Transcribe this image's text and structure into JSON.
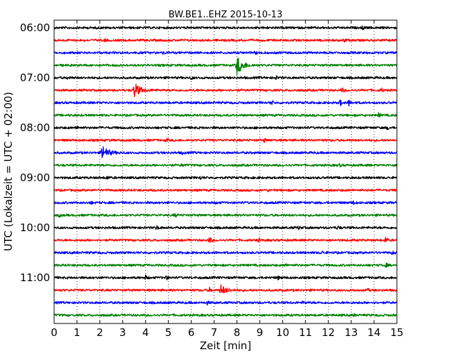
{
  "chart_data": {
    "type": "line",
    "title": "BW.BE1..EHZ 2015-10-13",
    "xlabel": "Zeit  [min]",
    "ylabel": "UTC (Lokalzeit = UTC + 02:00)",
    "xlim": [
      0,
      15
    ],
    "x_ticks": [
      "0",
      "1",
      "2",
      "3",
      "4",
      "5",
      "6",
      "7",
      "8",
      "9",
      "10",
      "11",
      "12",
      "13",
      "14",
      "15"
    ],
    "hour_labels": [
      {
        "trace": 0,
        "label": "06:00"
      },
      {
        "trace": 4,
        "label": "07:00"
      },
      {
        "trace": 8,
        "label": "08:00"
      },
      {
        "trace": 12,
        "label": "09:00"
      },
      {
        "trace": 16,
        "label": "10:00"
      },
      {
        "trace": 20,
        "label": "11:00"
      }
    ],
    "trace_minutes": 15,
    "grid": "vertical dotted",
    "series_colors": [
      "#000000",
      "#ff0000",
      "#0000ff",
      "#008000"
    ],
    "traces": [
      {
        "start": "06:00",
        "color": "#000000",
        "events": [
          {
            "t": 13.5,
            "amp": 0.5
          }
        ]
      },
      {
        "start": "06:15",
        "color": "#ff0000",
        "events": [
          {
            "t": 2.2,
            "amp": 0.5
          },
          {
            "t": 12.7,
            "amp": 0.35
          }
        ]
      },
      {
        "start": "06:30",
        "color": "#0000ff",
        "events": [
          {
            "t": 4.8,
            "amp": 0.3
          },
          {
            "t": 8.8,
            "amp": 0.3
          }
        ]
      },
      {
        "start": "06:45",
        "color": "#008000",
        "events": [
          {
            "t": 8.0,
            "amp": 2.3
          }
        ]
      },
      {
        "start": "07:00",
        "color": "#000000",
        "events": [
          {
            "t": 0.6,
            "amp": 0.45
          },
          {
            "t": 6.0,
            "amp": 0.4
          },
          {
            "t": 9.7,
            "amp": 0.45
          }
        ]
      },
      {
        "start": "07:15",
        "color": "#ff0000",
        "events": [
          {
            "t": 3.5,
            "amp": 1.8
          },
          {
            "t": 12.6,
            "amp": 0.5
          },
          {
            "t": 14.3,
            "amp": 0.6
          }
        ]
      },
      {
        "start": "07:30",
        "color": "#0000ff",
        "events": [
          {
            "t": 9.5,
            "amp": 0.6
          },
          {
            "t": 12.5,
            "amp": 0.9
          },
          {
            "t": 12.9,
            "amp": 1.0
          }
        ]
      },
      {
        "start": "07:45",
        "color": "#008000",
        "events": [
          {
            "t": 14.2,
            "amp": 0.45
          }
        ]
      },
      {
        "start": "08:00",
        "color": "#000000",
        "events": [
          {
            "t": 1.0,
            "amp": 0.5
          },
          {
            "t": 14.6,
            "amp": 0.35
          }
        ]
      },
      {
        "start": "08:15",
        "color": "#ff0000",
        "events": [
          {
            "t": 4.9,
            "amp": 0.4
          },
          {
            "t": 9.2,
            "amp": 0.35
          }
        ]
      },
      {
        "start": "08:30",
        "color": "#0000ff",
        "events": [
          {
            "t": 2.1,
            "amp": 1.8
          },
          {
            "t": 5.6,
            "amp": 0.3
          }
        ]
      },
      {
        "start": "08:45",
        "color": "#008000",
        "events": [
          {
            "t": 5.6,
            "amp": 0.3
          },
          {
            "t": 12.5,
            "amp": 0.3
          }
        ]
      },
      {
        "start": "09:00",
        "color": "#000000",
        "events": [
          {
            "t": 2.3,
            "amp": 0.45
          },
          {
            "t": 6.4,
            "amp": 0.4
          }
        ]
      },
      {
        "start": "09:15",
        "color": "#ff0000",
        "events": [
          {
            "t": 9.4,
            "amp": 0.3
          }
        ]
      },
      {
        "start": "09:30",
        "color": "#0000ff",
        "events": [
          {
            "t": 1.6,
            "amp": 0.3
          },
          {
            "t": 7.1,
            "amp": 0.3
          },
          {
            "t": 13.1,
            "amp": 0.3
          }
        ]
      },
      {
        "start": "09:45",
        "color": "#008000",
        "events": [
          {
            "t": 0.2,
            "amp": 0.45
          },
          {
            "t": 5.3,
            "amp": 0.4
          }
        ]
      },
      {
        "start": "10:00",
        "color": "#000000",
        "events": [
          {
            "t": 4.5,
            "amp": 0.4
          },
          {
            "t": 10.7,
            "amp": 0.4
          },
          {
            "t": 12.4,
            "amp": 0.55
          }
        ]
      },
      {
        "start": "10:15",
        "color": "#ff0000",
        "events": [
          {
            "t": 6.8,
            "amp": 1.0
          },
          {
            "t": 8.9,
            "amp": 0.5
          },
          {
            "t": 14.5,
            "amp": 0.7
          }
        ]
      },
      {
        "start": "10:30",
        "color": "#0000ff",
        "events": [
          {
            "t": 11.7,
            "amp": 0.4
          },
          {
            "t": 14.8,
            "amp": 0.4
          }
        ]
      },
      {
        "start": "10:45",
        "color": "#008000",
        "events": [
          {
            "t": 10.1,
            "amp": 0.35
          },
          {
            "t": 14.5,
            "amp": 0.6
          }
        ]
      },
      {
        "start": "11:00",
        "color": "#000000",
        "events": [
          {
            "t": 4.0,
            "amp": 0.45
          },
          {
            "t": 4.9,
            "amp": 0.5
          },
          {
            "t": 9.8,
            "amp": 0.35
          }
        ]
      },
      {
        "start": "11:15",
        "color": "#ff0000",
        "events": [
          {
            "t": 6.8,
            "amp": 0.45
          },
          {
            "t": 7.3,
            "amp": 1.1
          },
          {
            "t": 13.7,
            "amp": 0.45
          }
        ]
      },
      {
        "start": "11:30",
        "color": "#0000ff",
        "events": [
          {
            "t": 6.7,
            "amp": 0.35
          },
          {
            "t": 10.9,
            "amp": 0.35
          }
        ]
      },
      {
        "start": "11:45",
        "color": "#008000",
        "events": [
          {
            "t": 13.1,
            "amp": 0.3
          }
        ]
      }
    ]
  }
}
